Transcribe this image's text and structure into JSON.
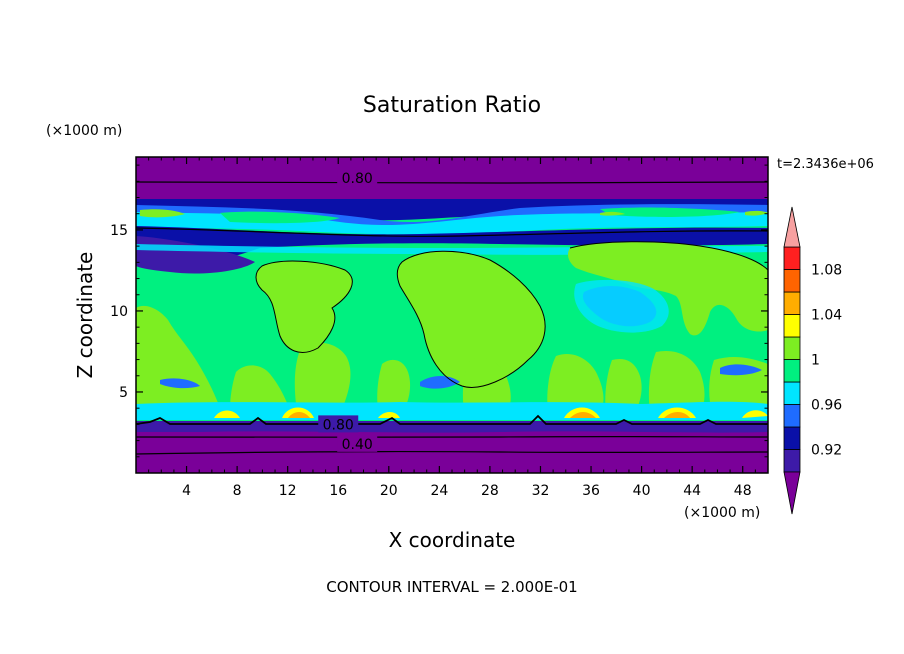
{
  "chart_data": {
    "type": "heatmap",
    "title": "Saturation Ratio",
    "xlabel": "X coordinate",
    "ylabel": "Z coordinate",
    "x_unit": "(×1000 m)",
    "y_unit": "(×1000 m)",
    "time_label": "t=2.3436e+06",
    "footer": "CONTOUR INTERVAL = 2.000E-01",
    "xlim": [
      0,
      50
    ],
    "ylim": [
      0,
      19.5
    ],
    "x_ticks": [
      4,
      8,
      12,
      16,
      20,
      24,
      28,
      32,
      36,
      40,
      44,
      48
    ],
    "y_ticks": [
      5,
      10,
      15
    ],
    "colorbar": {
      "levels": [
        0.9,
        0.92,
        0.94,
        0.96,
        0.98,
        1.0,
        1.02,
        1.04,
        1.06,
        1.08,
        1.1
      ],
      "labels": [
        "0.92",
        "0.96",
        "1",
        "1.04",
        "1.08"
      ],
      "label_values": [
        0.92,
        0.96,
        1.0,
        1.04,
        1.08
      ],
      "colors": [
        "#7a0099",
        "#3d1aa8",
        "#0a10a8",
        "#1f6cff",
        "#00e5ff",
        "#00f080",
        "#7dee22",
        "#ffff00",
        "#ffad00",
        "#ff6400",
        "#ff2020",
        "#f7a0a0"
      ]
    },
    "contour_labels": [
      {
        "text": "0.80",
        "x": 17.5,
        "z": 18.2
      },
      {
        "text": "0.80",
        "x": 16.0,
        "z": 3.0
      },
      {
        "text": "0.40",
        "x": 17.5,
        "z": 1.8
      }
    ]
  }
}
